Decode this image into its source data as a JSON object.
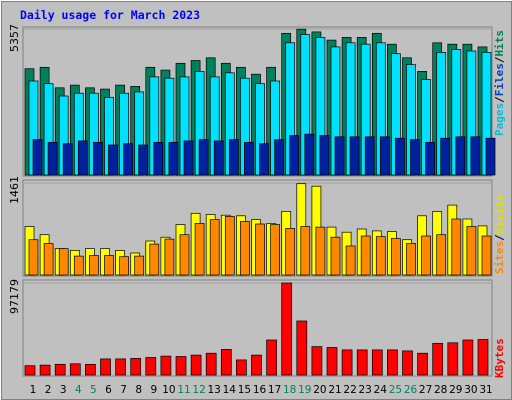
{
  "chart_data": {
    "type": "bar",
    "title": "Daily usage for March 2023",
    "categories": [
      "1",
      "2",
      "3",
      "4",
      "5",
      "6",
      "7",
      "8",
      "9",
      "10",
      "11",
      "12",
      "13",
      "14",
      "15",
      "16",
      "17",
      "18",
      "19",
      "20",
      "21",
      "22",
      "23",
      "24",
      "25",
      "26",
      "27",
      "28",
      "29",
      "30",
      "31"
    ],
    "weekend_days": [
      "4",
      "5",
      "11",
      "12",
      "18",
      "19",
      "25",
      "26"
    ],
    "panels": [
      {
        "id": "hits_files_pages",
        "ymax_label": "5357",
        "ymax": 5357,
        "series": [
          {
            "name": "Hits",
            "color": "#00805c",
            "values": [
              3900,
              3950,
              3200,
              3300,
              3200,
              3150,
              3300,
              3250,
              3950,
              3850,
              4100,
              4200,
              4300,
              4100,
              3950,
              3700,
              3950,
              5200,
              5350,
              5250,
              4950,
              5050,
              5050,
              5200,
              4800,
              4300,
              3800,
              4850,
              4800,
              4800,
              4700
            ]
          },
          {
            "name": "Files",
            "color": "#00e1ff",
            "values": [
              3450,
              3350,
              2900,
              3000,
              3000,
              2850,
              3000,
              3050,
              3600,
              3550,
              3600,
              3800,
              3600,
              3750,
              3550,
              3350,
              3450,
              4850,
              5150,
              5050,
              4700,
              4850,
              4800,
              4850,
              4450,
              4050,
              3500,
              4500,
              4600,
              4550,
              4500
            ]
          },
          {
            "name": "Pages",
            "color": "#0020a0",
            "values": [
              1300,
              1200,
              1150,
              1250,
              1200,
              1100,
              1150,
              1100,
              1200,
              1200,
              1250,
              1300,
              1250,
              1300,
              1200,
              1150,
              1300,
              1450,
              1500,
              1450,
              1400,
              1400,
              1400,
              1400,
              1350,
              1300,
              1200,
              1350,
              1400,
              1400,
              1350
            ]
          }
        ]
      },
      {
        "id": "visits_sites",
        "ymax_label": "1461",
        "ymax": 1461,
        "series": [
          {
            "name": "Visits",
            "color": "#ffff00",
            "values": [
              770,
              640,
              420,
              390,
              420,
              420,
              390,
              350,
              540,
              600,
              800,
              980,
              960,
              950,
              940,
              880,
              820,
              1010,
              1450,
              1410,
              760,
              680,
              730,
              700,
              690,
              560,
              940,
              1010,
              1110,
              890,
              780
            ]
          },
          {
            "name": "Sites",
            "color": "#ff8800",
            "values": [
              560,
              500,
              420,
              300,
              310,
              310,
              290,
              300,
              490,
              570,
              640,
              820,
              880,
              930,
              850,
              810,
              800,
              740,
              770,
              760,
              600,
              460,
              620,
              610,
              580,
              500,
              620,
              640,
              890,
              770,
              620
            ]
          }
        ]
      },
      {
        "id": "kbytes",
        "ymax_label": "97179",
        "ymax": 97179,
        "series": [
          {
            "name": "KBytes",
            "color": "#ff0000",
            "values": [
              9800,
              10500,
              11300,
              11800,
              11300,
              17000,
              17000,
              17500,
              18500,
              20000,
              19500,
              21000,
              23000,
              27000,
              16000,
              21000,
              37000,
              97179,
              57000,
              30000,
              29000,
              26500,
              26500,
              26500,
              26500,
              25500,
              23000,
              33500,
              34000,
              37000,
              37500
            ]
          }
        ]
      }
    ]
  }
}
